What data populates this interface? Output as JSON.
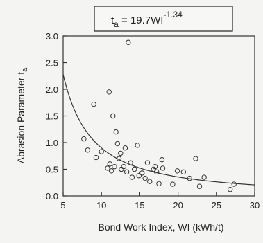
{
  "chart_data": {
    "type": "scatter",
    "xlabel": "Bond Work Index, WI (kWh/t)",
    "ylabel": "Abrasion Parameter t",
    "ylabel_sub": "a",
    "xlim": [
      5,
      30
    ],
    "ylim": [
      0,
      3
    ],
    "x_ticks": [
      {
        "value": 5,
        "label": "5"
      },
      {
        "value": 10,
        "label": "10"
      },
      {
        "value": 15,
        "label": "15"
      },
      {
        "value": 20,
        "label": "20"
      },
      {
        "value": 25,
        "label": "25"
      },
      {
        "value": 30,
        "label": "30"
      }
    ],
    "y_ticks": [
      {
        "value": 0,
        "label": "0.0"
      },
      {
        "value": 0.5,
        "label": "0.5"
      },
      {
        "value": 1.0,
        "label": "1.0"
      },
      {
        "value": 1.5,
        "label": "1.5"
      },
      {
        "value": 2.0,
        "label": "2.0"
      },
      {
        "value": 2.5,
        "label": "2.5"
      },
      {
        "value": 3.0,
        "label": "3.0"
      }
    ],
    "grid": false,
    "annotation": {
      "t": "t",
      "sub": "a",
      "eq": " = 19.7WI",
      "exp": "-1.34"
    },
    "fit": {
      "coef": 19.7,
      "exp": -1.34
    },
    "points": [
      {
        "x": 7.7,
        "y": 1.07
      },
      {
        "x": 8.2,
        "y": 0.86
      },
      {
        "x": 9.0,
        "y": 1.72
      },
      {
        "x": 9.3,
        "y": 0.72
      },
      {
        "x": 10.0,
        "y": 0.83
      },
      {
        "x": 10.8,
        "y": 0.52
      },
      {
        "x": 11.0,
        "y": 1.95
      },
      {
        "x": 11.1,
        "y": 0.6
      },
      {
        "x": 11.3,
        "y": 0.47
      },
      {
        "x": 11.5,
        "y": 1.5
      },
      {
        "x": 11.7,
        "y": 0.55
      },
      {
        "x": 11.9,
        "y": 1.2
      },
      {
        "x": 12.1,
        "y": 0.98
      },
      {
        "x": 12.3,
        "y": 0.7
      },
      {
        "x": 12.5,
        "y": 0.8
      },
      {
        "x": 12.6,
        "y": 0.5
      },
      {
        "x": 12.9,
        "y": 0.55
      },
      {
        "x": 13.1,
        "y": 0.9
      },
      {
        "x": 13.3,
        "y": 0.45
      },
      {
        "x": 13.5,
        "y": 2.88
      },
      {
        "x": 13.8,
        "y": 0.62
      },
      {
        "x": 14.0,
        "y": 0.35
      },
      {
        "x": 14.3,
        "y": 0.5
      },
      {
        "x": 14.7,
        "y": 0.95
      },
      {
        "x": 14.9,
        "y": 0.38
      },
      {
        "x": 15.3,
        "y": 0.43
      },
      {
        "x": 15.7,
        "y": 0.33
      },
      {
        "x": 16.0,
        "y": 0.62
      },
      {
        "x": 16.3,
        "y": 0.27
      },
      {
        "x": 16.8,
        "y": 0.5
      },
      {
        "x": 17.0,
        "y": 0.55
      },
      {
        "x": 17.2,
        "y": 0.45
      },
      {
        "x": 17.5,
        "y": 0.23
      },
      {
        "x": 17.9,
        "y": 0.68
      },
      {
        "x": 18.0,
        "y": 0.52
      },
      {
        "x": 19.3,
        "y": 0.22
      },
      {
        "x": 19.9,
        "y": 0.47
      },
      {
        "x": 20.7,
        "y": 0.45
      },
      {
        "x": 21.5,
        "y": 0.33
      },
      {
        "x": 22.3,
        "y": 0.7
      },
      {
        "x": 22.8,
        "y": 0.18
      },
      {
        "x": 23.4,
        "y": 0.35
      },
      {
        "x": 26.8,
        "y": 0.12
      },
      {
        "x": 27.3,
        "y": 0.22
      }
    ]
  }
}
